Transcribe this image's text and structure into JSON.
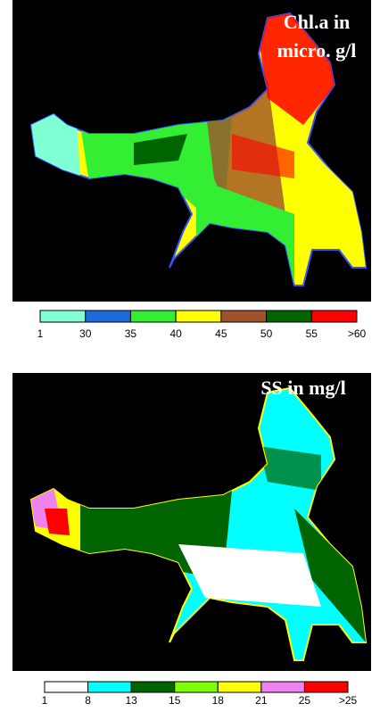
{
  "panels": [
    {
      "title_lines": [
        "Chl.a in",
        "micro. g/l"
      ],
      "legend": {
        "colors": [
          "#80ffd4",
          "#1e6bdc",
          "#33ee33",
          "#ffff00",
          "#a0522d",
          "#006400",
          "#ff0000"
        ],
        "labels": [
          "1",
          "30",
          "35",
          "40",
          "45",
          "50",
          "55",
          ">60"
        ]
      }
    },
    {
      "title_lines": [
        "SS in mg/l"
      ],
      "legend": {
        "colors": [
          "#ffffff",
          "#00ffff",
          "#006400",
          "#80ff00",
          "#ffff00",
          "#ee82ee",
          "#ff0000"
        ],
        "labels": [
          "1",
          "8",
          "13",
          "15",
          "18",
          "21",
          "25",
          ">25"
        ]
      }
    }
  ]
}
